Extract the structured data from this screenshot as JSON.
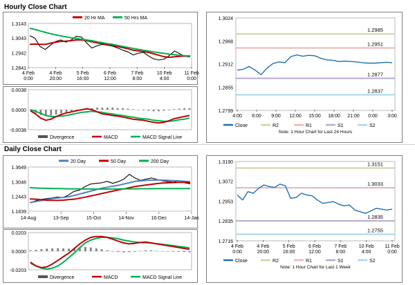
{
  "hourly": {
    "title": "Hourly Close Chart",
    "price_chart": {
      "type": "line",
      "legend": [
        "20 Hr MA",
        "50 Hrs MA"
      ],
      "y_ticks": [
        "1.3143",
        "1.3043",
        "1.2942",
        "1.2841"
      ],
      "ylim": [
        1.2841,
        1.3143
      ],
      "x_ticks": [
        "4 Feb 0:00",
        "4 Feb 20:00",
        "5 Feb 16:00",
        "6 Feb 12:00",
        "7 Feb 8:00",
        "10 Feb 4:00",
        "11 Feb 0:00"
      ],
      "series": [
        {
          "name": "Close",
          "values": [
            1.306,
            1.3042,
            1.2985,
            1.2965,
            1.2995,
            1.302,
            1.303,
            1.3015,
            1.303,
            1.3055,
            1.305,
            1.301,
            1.2975,
            1.299,
            1.3,
            1.2995,
            1.2988,
            1.2975,
            1.296,
            1.2948,
            1.2928,
            1.294,
            1.2945,
            1.292,
            1.29,
            1.2893,
            1.29,
            1.2925,
            1.2955,
            1.2935,
            1.2918,
            1.2915
          ]
        },
        {
          "name": "20 Hr MA",
          "values": [
            1.3,
            1.3002,
            1.3,
            1.3,
            1.3008,
            1.3015,
            1.302,
            1.3022,
            1.3025,
            1.303,
            1.303,
            1.3025,
            1.3018,
            1.301,
            1.3005,
            1.3,
            1.2993,
            1.2985,
            1.2978,
            1.297,
            1.296,
            1.2955,
            1.295,
            1.2945,
            1.2935,
            1.2925,
            1.2915,
            1.2912,
            1.2915,
            1.2918,
            1.292,
            1.2922
          ]
        },
        {
          "name": "50 Hrs MA",
          "values": [
            1.311,
            1.3102,
            1.3092,
            1.3082,
            1.3073,
            1.3065,
            1.3058,
            1.3052,
            1.3045,
            1.304,
            1.3035,
            1.303,
            1.3025,
            1.3018,
            1.3012,
            1.3005,
            1.3,
            1.2993,
            1.2986,
            1.2979,
            1.2972,
            1.2966,
            1.296,
            1.2954,
            1.2948,
            1.2943,
            1.2938,
            1.2933,
            1.2929,
            1.2925,
            1.2922,
            1.292
          ]
        }
      ]
    },
    "macd_chart": {
      "type": "line",
      "y_ticks": [
        "0.0038",
        "0.0000",
        "-0.0038"
      ],
      "ylim": [
        -0.0038,
        0.0038
      ],
      "legend": [
        "Divergence",
        "MACD",
        "MACD Signal Line"
      ],
      "divergence": [
        0.0,
        -0.0006,
        -0.001,
        -0.0012,
        -0.0011,
        -0.0009,
        -0.0007,
        -0.0005,
        -0.0003,
        -0.0001,
        0.0001,
        0.0002,
        0.0003,
        0.0004,
        0.0004,
        0.0004,
        0.0004,
        0.0003,
        0.0003,
        0.0002,
        0.0001,
        0.0,
        -0.0001,
        -0.0002,
        -0.0003,
        -0.0003,
        -0.0002,
        -0.0001,
        0.0001,
        0.0002,
        0.0003,
        0.0003
      ],
      "series": [
        {
          "name": "MACD",
          "values": [
            -0.0002,
            -0.0008,
            -0.0016,
            -0.002,
            -0.0018,
            -0.0013,
            -0.0009,
            -0.0006,
            -0.0004,
            -0.0002,
            0.0,
            0.0002,
            0.0,
            -0.0004,
            -0.0008,
            -0.0009,
            -0.0011,
            -0.0012,
            -0.0014,
            -0.0016,
            -0.0018,
            -0.0019,
            -0.002,
            -0.0022,
            -0.0024,
            -0.0025,
            -0.0024,
            -0.0021,
            -0.0017,
            -0.0015,
            -0.0013,
            -0.0011
          ]
        },
        {
          "name": "MACD Signal Line",
          "values": [
            0.0,
            -0.0003,
            -0.0007,
            -0.0011,
            -0.0013,
            -0.0013,
            -0.0012,
            -0.0011,
            -0.0009,
            -0.0007,
            -0.0005,
            -0.0004,
            -0.0003,
            -0.0004,
            -0.0005,
            -0.0007,
            -0.0008,
            -0.001,
            -0.0011,
            -0.0013,
            -0.0014,
            -0.0016,
            -0.0017,
            -0.0018,
            -0.002,
            -0.0021,
            -0.0022,
            -0.0022,
            -0.0021,
            -0.0019,
            -0.0018,
            -0.0016
          ]
        }
      ]
    },
    "pivot_chart": {
      "type": "line",
      "y_ticks": [
        "1.3024",
        "1.2968",
        "1.2912",
        "1.2855",
        "1.2799"
      ],
      "ylim": [
        1.2799,
        1.3024
      ],
      "x_ticks": [
        "4:00",
        "6:00",
        "9:00",
        "12:00",
        "15:00",
        "18:00",
        "21:00",
        "0:00",
        "3:00"
      ],
      "levels": [
        {
          "name": "R2",
          "value": 1.2985,
          "label": "1.2985",
          "color": "#c8d6a0"
        },
        {
          "name": "R1",
          "value": 1.2951,
          "label": "1.2951",
          "color": "#e8b4b4"
        },
        {
          "name": "S1",
          "value": 1.2877,
          "label": "1.2877",
          "color": "#b7a8d0"
        },
        {
          "name": "S2",
          "value": 1.2837,
          "label": "1.2837",
          "color": "#a8d6e8"
        }
      ],
      "close": [
        1.2897,
        1.2899,
        1.2906,
        1.2897,
        1.2886,
        1.2902,
        1.2913,
        1.2917,
        1.2915,
        1.293,
        1.2934,
        1.2931,
        1.2933,
        1.2932,
        1.2926,
        1.2922,
        1.2921,
        1.2918,
        1.2919,
        1.2918,
        1.2917,
        1.2915,
        1.2914,
        1.2914,
        1.2915,
        1.2916,
        1.2915
      ],
      "legend": [
        "Close",
        "R2",
        "R1",
        "S1",
        "S2"
      ],
      "note": "Note: 1 Hour Chart for Last 24 Hours"
    }
  },
  "daily": {
    "title": "Daily Close Chart",
    "price_chart": {
      "type": "line",
      "legend": [
        "20 Day",
        "50 Day",
        "200 Day"
      ],
      "y_ticks": [
        "1.3649",
        "1.3046",
        "1.2443",
        "1.1839"
      ],
      "ylim": [
        1.1839,
        1.3649
      ],
      "x_ticks": [
        "14-Aug",
        "13-Sep",
        "15-Oct",
        "14-Nov",
        "16-Dec",
        "14-Jan"
      ],
      "series": [
        {
          "name": "Close",
          "values": [
            1.218,
            1.226,
            1.232,
            1.235,
            1.238,
            1.242,
            1.24,
            1.25,
            1.265,
            1.27,
            1.285,
            1.295,
            1.298,
            1.3,
            1.306,
            1.298,
            1.305,
            1.315,
            1.335,
            1.32,
            1.31,
            1.315,
            1.32,
            1.314,
            1.308,
            1.305,
            1.303,
            1.309,
            1.3,
            1.296
          ]
        },
        {
          "name": "20 Day",
          "values": [
            1.219,
            1.223,
            1.227,
            1.231,
            1.235,
            1.238,
            1.24,
            1.243,
            1.248,
            1.254,
            1.26,
            1.266,
            1.272,
            1.278,
            1.282,
            1.286,
            1.29,
            1.295,
            1.3,
            1.306,
            1.308,
            1.31,
            1.311,
            1.312,
            1.311,
            1.31,
            1.309,
            1.308,
            1.306,
            1.305
          ]
        },
        {
          "name": "50 Day",
          "values": [
            1.234,
            1.233,
            1.231,
            1.229,
            1.228,
            1.228,
            1.229,
            1.231,
            1.233,
            1.237,
            1.241,
            1.246,
            1.251,
            1.256,
            1.261,
            1.266,
            1.271,
            1.275,
            1.28,
            1.285,
            1.288,
            1.291,
            1.294,
            1.297,
            1.299,
            1.3,
            1.301,
            1.302,
            1.302,
            1.301
          ]
        },
        {
          "name": "200 Day",
          "values": [
            1.28,
            1.279,
            1.278,
            1.2775,
            1.277,
            1.2765,
            1.276,
            1.2755,
            1.2752,
            1.275,
            1.2748,
            1.2746,
            1.2745,
            1.2745,
            1.2745,
            1.2746,
            1.2748,
            1.275,
            1.2752,
            1.2755,
            1.2757,
            1.2758,
            1.276,
            1.2761,
            1.2762,
            1.2763,
            1.2764,
            1.2765,
            1.2766,
            1.2767
          ]
        }
      ]
    },
    "macd_chart": {
      "type": "line",
      "y_ticks": [
        "0.0203",
        "0.0000",
        "-0.0203"
      ],
      "ylim": [
        -0.0203,
        0.0203
      ],
      "legend": [
        "Divergence",
        "MACD",
        "MACD Signal Line"
      ],
      "divergence": [
        0.001,
        0.0015,
        0.0022,
        0.0028,
        0.003,
        0.0032,
        0.003,
        0.0028,
        0.0034,
        0.004,
        0.0045,
        0.004,
        0.003,
        0.002,
        0.001,
        0.0,
        -0.0008,
        -0.0012,
        -0.001,
        -0.0006,
        0.0004,
        0.001,
        0.0008,
        0.0004,
        0.0,
        -0.0004,
        -0.0006,
        -0.0008,
        -0.001,
        -0.0012
      ],
      "series": [
        {
          "name": "MACD",
          "values": [
            -0.012,
            -0.016,
            -0.018,
            -0.017,
            -0.014,
            -0.01,
            -0.006,
            -0.002,
            0.003,
            0.008,
            0.012,
            0.015,
            0.016,
            0.016,
            0.015,
            0.013,
            0.011,
            0.009,
            0.008,
            0.0085,
            0.0095,
            0.01,
            0.009,
            0.008,
            0.007,
            0.006,
            0.005,
            0.004,
            0.003,
            0.002
          ]
        },
        {
          "name": "MACD Signal Line",
          "values": [
            -0.013,
            -0.016,
            -0.0185,
            -0.0195,
            -0.0185,
            -0.016,
            -0.012,
            -0.007,
            -0.002,
            0.004,
            0.009,
            0.012,
            0.014,
            0.015,
            0.015,
            0.0145,
            0.0135,
            0.012,
            0.011,
            0.01,
            0.0095,
            0.0092,
            0.0088,
            0.0082,
            0.0075,
            0.0068,
            0.006,
            0.0052,
            0.0045,
            0.0035
          ]
        }
      ]
    },
    "pivot_chart": {
      "type": "line",
      "y_ticks": [
        "1.3190",
        "1.3072",
        "1.2953",
        "1.2835",
        "1.2716"
      ],
      "ylim": [
        1.2716,
        1.319
      ],
      "x_ticks": [
        "4 Feb 0:00",
        "4 Feb 20:00",
        "5 Feb 16:00",
        "6 Feb 12:00",
        "7 Feb 8:00",
        "10 Feb 4:00",
        "11 Feb 0:00"
      ],
      "levels": [
        {
          "name": "R2",
          "value": 1.3151,
          "label": "1.3151",
          "color": "#c8d6a0"
        },
        {
          "name": "R1",
          "value": 1.3033,
          "label": "1.3033",
          "color": "#e8b4b4"
        },
        {
          "name": "S1",
          "value": 1.2835,
          "label": "1.2835",
          "color": "#b7a8d0"
        },
        {
          "name": "S2",
          "value": 1.2755,
          "label": "1.2755",
          "color": "#a8d6e8"
        }
      ],
      "close": [
        1.299,
        1.296,
        1.301,
        1.3,
        1.303,
        1.305,
        1.304,
        1.3035,
        1.3055,
        1.3045,
        1.297,
        1.2975,
        1.3,
        1.299,
        1.2985,
        1.296,
        1.294,
        1.2945,
        1.295,
        1.2935,
        1.2925,
        1.293,
        1.29,
        1.289,
        1.288,
        1.2895,
        1.291,
        1.2905,
        1.29,
        1.2905
      ],
      "legend": [
        "Close",
        "R2",
        "R1",
        "S1",
        "S2"
      ],
      "note": "Note: 1 Hour Chart for Last 1 Week"
    }
  },
  "colors": {
    "close": "#000000",
    "ma_short": "#c00000",
    "ma_long": "#00b050",
    "ma_20day": "#4f81bd",
    "pivot_close": "#1f6fb4",
    "divergence": "#808080",
    "macd": "#c00000",
    "signal": "#00b050"
  }
}
